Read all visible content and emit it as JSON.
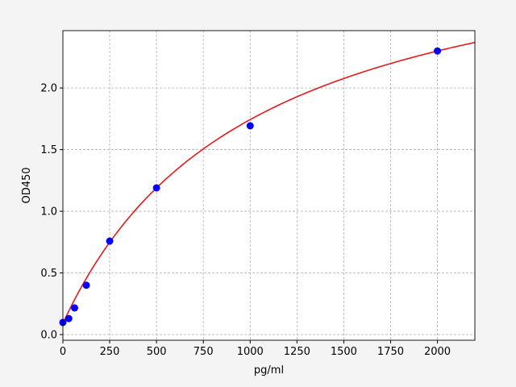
{
  "chart_data": {
    "type": "scatter",
    "title": "",
    "xlabel": "pg/ml",
    "ylabel": "OD450",
    "xlim": [
      0,
      2200
    ],
    "ylim": [
      -0.046,
      2.465
    ],
    "grid": true,
    "x_ticks": [
      "0",
      "250",
      "500",
      "750",
      "1000",
      "1250",
      "1500",
      "1750",
      "2000"
    ],
    "y_ticks": [
      "0.0",
      "0.5",
      "1.0",
      "1.5",
      "2.0"
    ],
    "points": {
      "color": "#0000ff",
      "x": [
        0,
        31.25,
        62.5,
        125,
        250,
        500,
        1000,
        2000
      ],
      "y": [
        0.098,
        0.13,
        0.216,
        0.4,
        0.758,
        1.19,
        1.693,
        2.3
      ]
    },
    "fit_curve": {
      "color": "#e41a1c",
      "x_range": [
        0,
        2200
      ]
    }
  }
}
